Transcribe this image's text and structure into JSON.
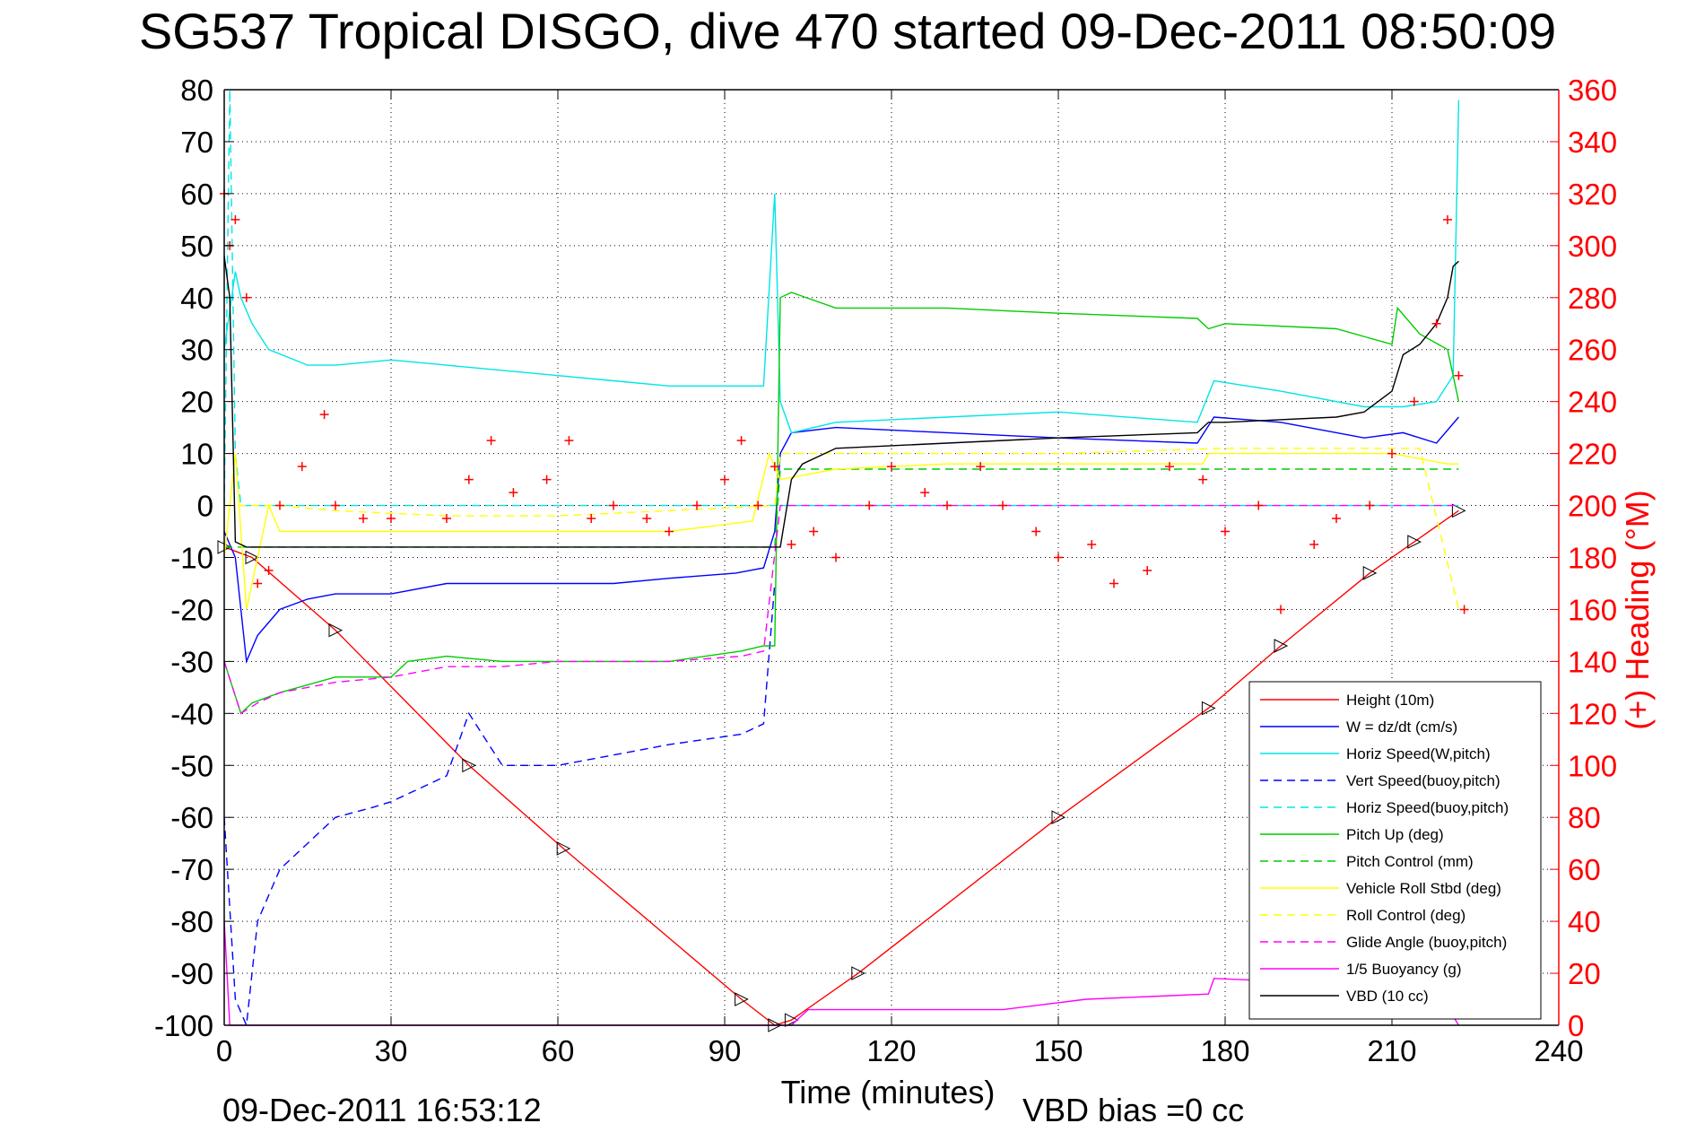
{
  "chart_data": {
    "type": "line",
    "title": "SG537 Tropical DISGO, dive 470 started 09-Dec-2011 08:50:09",
    "xlabel": "Time (minutes)",
    "ylabel_right": "(+) Heading (°M)",
    "xlim": [
      0,
      240
    ],
    "ylim": [
      -100,
      80
    ],
    "ylim_right": [
      0,
      360
    ],
    "xticks": [
      "0",
      "30",
      "60",
      "90",
      "120",
      "150",
      "180",
      "210",
      "240"
    ],
    "yticks": [
      "80",
      "70",
      "60",
      "50",
      "40",
      "30",
      "20",
      "10",
      "0",
      "-10",
      "-20",
      "-30",
      "-40",
      "-50",
      "-60",
      "-70",
      "-80",
      "-90",
      "-100"
    ],
    "yticks_right": [
      "360",
      "340",
      "320",
      "300",
      "280",
      "260",
      "240",
      "220",
      "200",
      "180",
      "160",
      "140",
      "120",
      "100",
      "80",
      "60",
      "40",
      "20",
      "0"
    ],
    "grid": true,
    "legend_position": "bottom-right",
    "footer_left": "09-Dec-2011 16:53:12",
    "footer_right": "VBD bias =0 cc",
    "series": [
      {
        "name": "Height (10m)",
        "color": "#ff0000",
        "dash": "solid",
        "x": [
          0,
          5,
          20,
          44,
          61,
          93,
          99,
          102,
          114,
          150,
          177,
          190,
          206,
          214,
          222
        ],
        "y": [
          -8,
          -10,
          -24,
          -50,
          -66,
          -95,
          -100,
          -99,
          -90,
          -60,
          -39,
          -27,
          -13,
          -7,
          -1
        ]
      },
      {
        "name": "W = dz/dt (cm/s)",
        "color": "#0000ff",
        "dash": "solid",
        "x": [
          0,
          2,
          4,
          6,
          10,
          15,
          20,
          30,
          40,
          50,
          60,
          70,
          80,
          92,
          97,
          99,
          100,
          102,
          110,
          130,
          150,
          175,
          178,
          190,
          205,
          212,
          218,
          222
        ],
        "y": [
          -5,
          -10,
          -30,
          -25,
          -20,
          -18,
          -17,
          -17,
          -15,
          -15,
          -15,
          -15,
          -14,
          -13,
          -12,
          -5,
          10,
          14,
          15,
          14,
          13,
          12,
          17,
          16,
          13,
          14,
          12,
          17
        ]
      },
      {
        "name": "Horiz Speed(W,pitch)",
        "color": "#00e5e5",
        "dash": "solid",
        "x": [
          0,
          2,
          3,
          5,
          8,
          15,
          20,
          30,
          40,
          50,
          60,
          70,
          80,
          90,
          97,
          99,
          100,
          102,
          110,
          130,
          150,
          175,
          178,
          190,
          205,
          212,
          218,
          221,
          222
        ],
        "y": [
          30,
          45,
          40,
          35,
          30,
          27,
          27,
          28,
          27,
          26,
          25,
          24,
          23,
          23,
          23,
          60,
          20,
          14,
          16,
          17,
          18,
          16,
          24,
          22,
          19,
          19,
          20,
          25,
          78
        ]
      },
      {
        "name": "Vert Speed(buoy,pitch)",
        "color": "#0000ff",
        "dash": "dashed",
        "x": [
          0,
          2,
          4,
          6,
          8,
          10,
          15,
          20,
          27,
          30,
          34,
          40,
          44,
          50,
          60,
          70,
          80,
          93,
          97,
          99
        ],
        "y": [
          -60,
          -95,
          -100,
          -80,
          -75,
          -70,
          -65,
          -60,
          -58,
          -57,
          -55,
          -52,
          -40,
          -50,
          -50,
          -48,
          -46,
          -44,
          -42,
          -15
        ]
      },
      {
        "name": "Horiz Speed(buoy,pitch)",
        "color": "#00e5e5",
        "dash": "dashed",
        "x": [
          0,
          1,
          2,
          3,
          222
        ],
        "y": [
          0,
          80,
          10,
          0,
          0
        ]
      },
      {
        "name": "Pitch Up (deg)",
        "color": "#00cc00",
        "dash": "solid",
        "x": [
          0,
          3,
          5,
          10,
          20,
          30,
          33,
          40,
          50,
          60,
          70,
          80,
          93,
          97,
          99,
          100,
          102,
          110,
          130,
          150,
          175,
          177,
          180,
          200,
          210,
          211,
          215,
          220,
          222
        ],
        "y": [
          -30,
          -40,
          -38,
          -36,
          -33,
          -33,
          -30,
          -29,
          -30,
          -30,
          -30,
          -30,
          -28,
          -27,
          -27,
          40,
          41,
          38,
          38,
          37,
          36,
          34,
          35,
          34,
          31,
          38,
          33,
          30,
          20
        ]
      },
      {
        "name": "Pitch Control (mm)",
        "color": "#00cc00",
        "dash": "dashed",
        "x": [
          0,
          5,
          99,
          100,
          222
        ],
        "y": [
          -8,
          -8,
          -8,
          7,
          7
        ]
      },
      {
        "name": "Vehicle Roll Stbd (deg)",
        "color": "#ffff00",
        "dash": "solid",
        "x": [
          0,
          2,
          4,
          6,
          8,
          10,
          20,
          40,
          60,
          80,
          95,
          98,
          100,
          110,
          130,
          150,
          170,
          176,
          177,
          180,
          200,
          210,
          215,
          220,
          222
        ],
        "y": [
          -10,
          10,
          -20,
          -10,
          0,
          -5,
          -5,
          -5,
          -5,
          -5,
          -3,
          10,
          5,
          7,
          8,
          8,
          8,
          8,
          10,
          10,
          10,
          10,
          9,
          8,
          8
        ]
      },
      {
        "name": "Roll Control (deg)",
        "color": "#ffff00",
        "dash": "dashed",
        "x": [
          0,
          10,
          20,
          40,
          60,
          80,
          99,
          100,
          130,
          150,
          180,
          200,
          215,
          222
        ],
        "y": [
          0,
          0,
          -1,
          -2,
          -2,
          -1,
          0,
          10,
          10,
          10,
          11,
          11,
          11,
          -20
        ]
      },
      {
        "name": "Glide Angle (buoy,pitch)",
        "color": "#ff00ff",
        "dash": "dashed",
        "x": [
          0,
          3,
          6,
          10,
          20,
          30,
          40,
          50,
          60,
          70,
          80,
          93,
          97,
          100,
          222
        ],
        "y": [
          -30,
          -40,
          -38,
          -36,
          -34,
          -33,
          -31,
          -31,
          -30,
          -30,
          -30,
          -29,
          -28,
          0,
          0
        ]
      },
      {
        "name": "1/5 Buoyancy (g)",
        "color": "#ff00ff",
        "dash": "solid",
        "x": [
          0,
          1,
          2,
          3,
          102,
          105,
          140,
          155,
          177,
          178,
          200,
          210,
          218,
          222
        ],
        "y": [
          -80,
          -100,
          -100,
          -100,
          -100,
          -97,
          -97,
          -95,
          -94,
          -91,
          -92,
          -93,
          -93,
          -100
        ]
      },
      {
        "name": "VBD (10 cc)",
        "color": "#000000",
        "dash": "solid",
        "x": [
          0,
          1,
          2,
          4,
          99,
          100,
          102,
          104,
          110,
          130,
          150,
          175,
          177,
          180,
          200,
          205,
          210,
          212,
          215,
          218,
          220,
          221,
          222
        ],
        "y": [
          48,
          40,
          -7,
          -8,
          -8,
          -8,
          5,
          8,
          11,
          12,
          13,
          14,
          16,
          16,
          17,
          18,
          22,
          29,
          31,
          35,
          40,
          46,
          47
        ]
      },
      {
        "name": "Heading (+)",
        "color": "#ff0000",
        "dash": "none",
        "axis": "right",
        "x": [
          0,
          1,
          2,
          4,
          6,
          8,
          10,
          14,
          18,
          20,
          25,
          30,
          40,
          44,
          48,
          52,
          58,
          62,
          66,
          70,
          76,
          80,
          85,
          90,
          93,
          96,
          99,
          102,
          106,
          110,
          116,
          120,
          126,
          130,
          136,
          140,
          146,
          150,
          156,
          160,
          166,
          170,
          176,
          180,
          186,
          190,
          196,
          200,
          206,
          210,
          214,
          218,
          220,
          222,
          223
        ],
        "y": [
          320,
          300,
          310,
          280,
          170,
          175,
          200,
          215,
          235,
          200,
          195,
          195,
          195,
          210,
          225,
          205,
          210,
          225,
          195,
          200,
          195,
          190,
          200,
          210,
          225,
          200,
          215,
          185,
          190,
          180,
          200,
          215,
          205,
          200,
          215,
          200,
          190,
          180,
          185,
          170,
          175,
          215,
          210,
          190,
          200,
          160,
          185,
          195,
          200,
          220,
          240,
          270,
          310,
          250,
          160
        ]
      }
    ]
  },
  "legend": {
    "entries": [
      {
        "label": "Height (10m)",
        "color": "#ff0000",
        "dash": "solid"
      },
      {
        "label": "W = dz/dt (cm/s)",
        "color": "#0000ff",
        "dash": "solid"
      },
      {
        "label": "Horiz Speed(W,pitch)",
        "color": "#00e5e5",
        "dash": "solid"
      },
      {
        "label": "Vert Speed(buoy,pitch)",
        "color": "#0000ff",
        "dash": "dashed"
      },
      {
        "label": "Horiz Speed(buoy,pitch)",
        "color": "#00e5e5",
        "dash": "dashed"
      },
      {
        "label": "Pitch Up (deg)",
        "color": "#00cc00",
        "dash": "solid"
      },
      {
        "label": "Pitch Control (mm)",
        "color": "#00cc00",
        "dash": "dashed"
      },
      {
        "label": "Vehicle Roll Stbd (deg)",
        "color": "#ffff00",
        "dash": "solid"
      },
      {
        "label": "Roll Control (deg)",
        "color": "#ffff00",
        "dash": "dashed"
      },
      {
        "label": "Glide Angle (buoy,pitch)",
        "color": "#ff00ff",
        "dash": "dashed"
      },
      {
        "label": "1/5 Buoyancy (g)",
        "color": "#ff00ff",
        "dash": "solid"
      },
      {
        "label": "VBD (10 cc)",
        "color": "#000000",
        "dash": "solid"
      }
    ]
  }
}
